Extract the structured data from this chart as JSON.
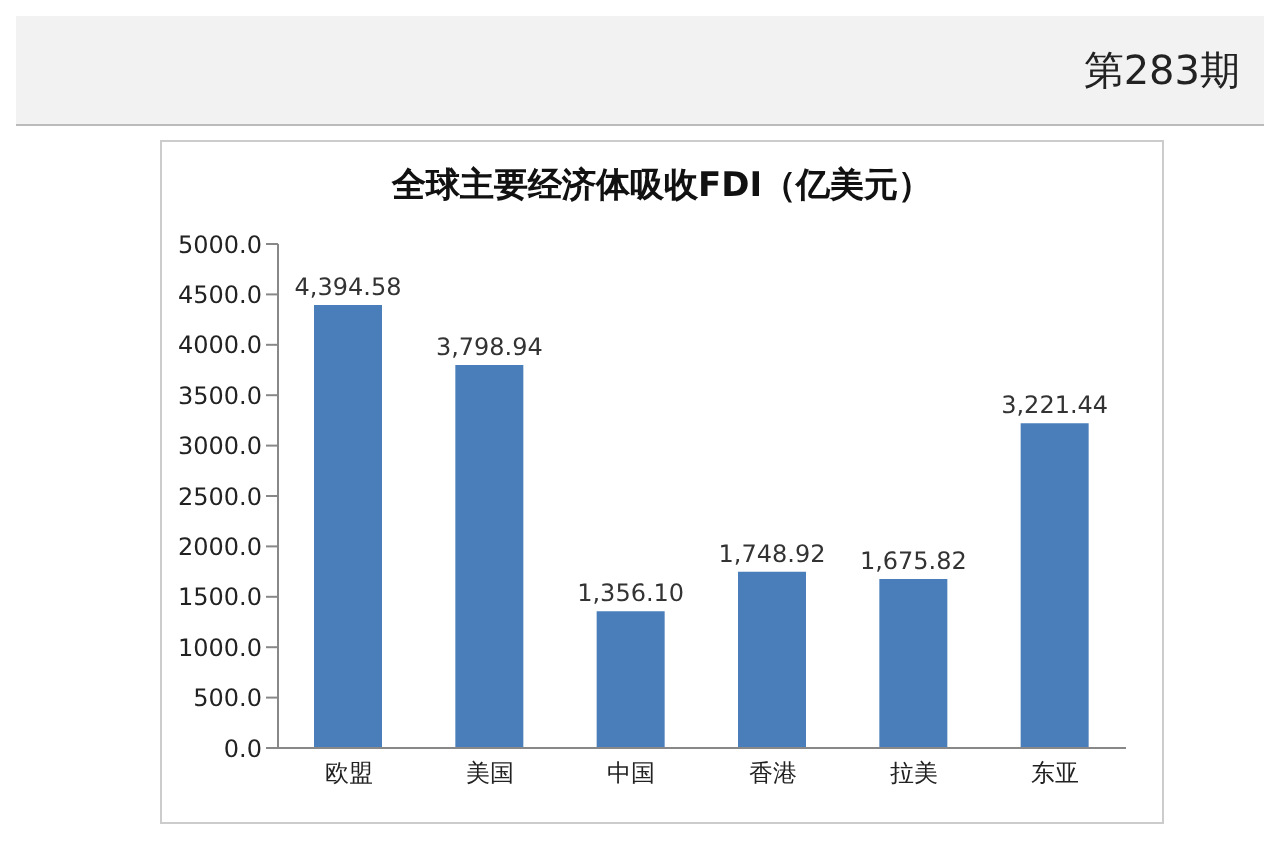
{
  "chart_data": {
    "type": "bar",
    "title": "全球主要经济体吸收FDI（亿美元）",
    "categories": [
      "欧盟",
      "美国",
      "中国",
      "香港",
      "拉美",
      "东亚"
    ],
    "values": [
      4394.58,
      3798.94,
      1356.1,
      1748.92,
      1675.82,
      3221.44
    ],
    "value_labels": [
      "4,394.58",
      "3,798.94",
      "1,356.10",
      "1,748.92",
      "1,675.82",
      "3,221.44"
    ],
    "color": "#4a7ebb",
    "ylim": [
      0,
      5000
    ],
    "yticks": [
      {
        "value": 0,
        "label": "0.0"
      },
      {
        "value": 500,
        "label": "500.0"
      },
      {
        "value": 1000,
        "label": "1000.0"
      },
      {
        "value": 1500,
        "label": "1500.0"
      },
      {
        "value": 2000,
        "label": "2000.0"
      },
      {
        "value": 2500,
        "label": "2500.0"
      },
      {
        "value": 3000,
        "label": "3000.0"
      },
      {
        "value": 3500,
        "label": "3500.0"
      },
      {
        "value": 4000,
        "label": "4000.0"
      },
      {
        "value": 4500,
        "label": "4500.0"
      },
      {
        "value": 5000,
        "label": "5000.0"
      }
    ],
    "grid": false,
    "annotations": [
      "第283期"
    ]
  }
}
